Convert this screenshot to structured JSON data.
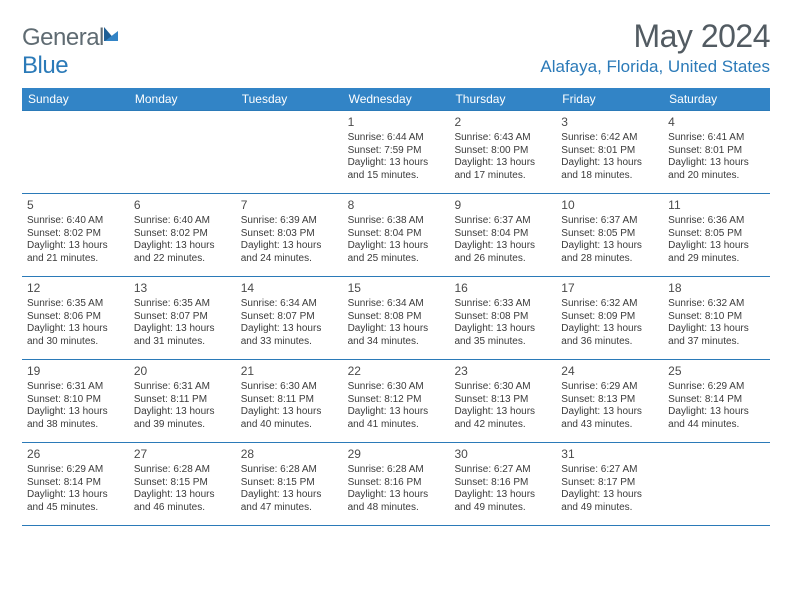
{
  "logo": {
    "text_gray": "General",
    "text_blue": "Blue"
  },
  "title": "May 2024",
  "location": "Alafaya, Florida, United States",
  "weekdays": [
    "Sunday",
    "Monday",
    "Tuesday",
    "Wednesday",
    "Thursday",
    "Friday",
    "Saturday"
  ],
  "colors": {
    "header_bg": "#3284c6",
    "accent": "#2b7ab8",
    "logo_gray": "#5f6b72",
    "title_gray": "#525b62"
  },
  "weeks": [
    [
      null,
      null,
      null,
      {
        "n": "1",
        "sr": "Sunrise: 6:44 AM",
        "ss": "Sunset: 7:59 PM",
        "dl": "Daylight: 13 hours and 15 minutes."
      },
      {
        "n": "2",
        "sr": "Sunrise: 6:43 AM",
        "ss": "Sunset: 8:00 PM",
        "dl": "Daylight: 13 hours and 17 minutes."
      },
      {
        "n": "3",
        "sr": "Sunrise: 6:42 AM",
        "ss": "Sunset: 8:01 PM",
        "dl": "Daylight: 13 hours and 18 minutes."
      },
      {
        "n": "4",
        "sr": "Sunrise: 6:41 AM",
        "ss": "Sunset: 8:01 PM",
        "dl": "Daylight: 13 hours and 20 minutes."
      }
    ],
    [
      {
        "n": "5",
        "sr": "Sunrise: 6:40 AM",
        "ss": "Sunset: 8:02 PM",
        "dl": "Daylight: 13 hours and 21 minutes."
      },
      {
        "n": "6",
        "sr": "Sunrise: 6:40 AM",
        "ss": "Sunset: 8:02 PM",
        "dl": "Daylight: 13 hours and 22 minutes."
      },
      {
        "n": "7",
        "sr": "Sunrise: 6:39 AM",
        "ss": "Sunset: 8:03 PM",
        "dl": "Daylight: 13 hours and 24 minutes."
      },
      {
        "n": "8",
        "sr": "Sunrise: 6:38 AM",
        "ss": "Sunset: 8:04 PM",
        "dl": "Daylight: 13 hours and 25 minutes."
      },
      {
        "n": "9",
        "sr": "Sunrise: 6:37 AM",
        "ss": "Sunset: 8:04 PM",
        "dl": "Daylight: 13 hours and 26 minutes."
      },
      {
        "n": "10",
        "sr": "Sunrise: 6:37 AM",
        "ss": "Sunset: 8:05 PM",
        "dl": "Daylight: 13 hours and 28 minutes."
      },
      {
        "n": "11",
        "sr": "Sunrise: 6:36 AM",
        "ss": "Sunset: 8:05 PM",
        "dl": "Daylight: 13 hours and 29 minutes."
      }
    ],
    [
      {
        "n": "12",
        "sr": "Sunrise: 6:35 AM",
        "ss": "Sunset: 8:06 PM",
        "dl": "Daylight: 13 hours and 30 minutes."
      },
      {
        "n": "13",
        "sr": "Sunrise: 6:35 AM",
        "ss": "Sunset: 8:07 PM",
        "dl": "Daylight: 13 hours and 31 minutes."
      },
      {
        "n": "14",
        "sr": "Sunrise: 6:34 AM",
        "ss": "Sunset: 8:07 PM",
        "dl": "Daylight: 13 hours and 33 minutes."
      },
      {
        "n": "15",
        "sr": "Sunrise: 6:34 AM",
        "ss": "Sunset: 8:08 PM",
        "dl": "Daylight: 13 hours and 34 minutes."
      },
      {
        "n": "16",
        "sr": "Sunrise: 6:33 AM",
        "ss": "Sunset: 8:08 PM",
        "dl": "Daylight: 13 hours and 35 minutes."
      },
      {
        "n": "17",
        "sr": "Sunrise: 6:32 AM",
        "ss": "Sunset: 8:09 PM",
        "dl": "Daylight: 13 hours and 36 minutes."
      },
      {
        "n": "18",
        "sr": "Sunrise: 6:32 AM",
        "ss": "Sunset: 8:10 PM",
        "dl": "Daylight: 13 hours and 37 minutes."
      }
    ],
    [
      {
        "n": "19",
        "sr": "Sunrise: 6:31 AM",
        "ss": "Sunset: 8:10 PM",
        "dl": "Daylight: 13 hours and 38 minutes."
      },
      {
        "n": "20",
        "sr": "Sunrise: 6:31 AM",
        "ss": "Sunset: 8:11 PM",
        "dl": "Daylight: 13 hours and 39 minutes."
      },
      {
        "n": "21",
        "sr": "Sunrise: 6:30 AM",
        "ss": "Sunset: 8:11 PM",
        "dl": "Daylight: 13 hours and 40 minutes."
      },
      {
        "n": "22",
        "sr": "Sunrise: 6:30 AM",
        "ss": "Sunset: 8:12 PM",
        "dl": "Daylight: 13 hours and 41 minutes."
      },
      {
        "n": "23",
        "sr": "Sunrise: 6:30 AM",
        "ss": "Sunset: 8:13 PM",
        "dl": "Daylight: 13 hours and 42 minutes."
      },
      {
        "n": "24",
        "sr": "Sunrise: 6:29 AM",
        "ss": "Sunset: 8:13 PM",
        "dl": "Daylight: 13 hours and 43 minutes."
      },
      {
        "n": "25",
        "sr": "Sunrise: 6:29 AM",
        "ss": "Sunset: 8:14 PM",
        "dl": "Daylight: 13 hours and 44 minutes."
      }
    ],
    [
      {
        "n": "26",
        "sr": "Sunrise: 6:29 AM",
        "ss": "Sunset: 8:14 PM",
        "dl": "Daylight: 13 hours and 45 minutes."
      },
      {
        "n": "27",
        "sr": "Sunrise: 6:28 AM",
        "ss": "Sunset: 8:15 PM",
        "dl": "Daylight: 13 hours and 46 minutes."
      },
      {
        "n": "28",
        "sr": "Sunrise: 6:28 AM",
        "ss": "Sunset: 8:15 PM",
        "dl": "Daylight: 13 hours and 47 minutes."
      },
      {
        "n": "29",
        "sr": "Sunrise: 6:28 AM",
        "ss": "Sunset: 8:16 PM",
        "dl": "Daylight: 13 hours and 48 minutes."
      },
      {
        "n": "30",
        "sr": "Sunrise: 6:27 AM",
        "ss": "Sunset: 8:16 PM",
        "dl": "Daylight: 13 hours and 49 minutes."
      },
      {
        "n": "31",
        "sr": "Sunrise: 6:27 AM",
        "ss": "Sunset: 8:17 PM",
        "dl": "Daylight: 13 hours and 49 minutes."
      },
      null
    ]
  ]
}
